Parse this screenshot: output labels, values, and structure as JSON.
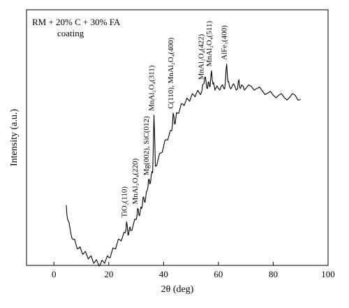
{
  "chart_data": {
    "type": "line",
    "title": "",
    "legend_box": [
      "RM + 20% C + 30% FA",
      "coating"
    ],
    "xlabel": "2θ (deg)",
    "ylabel": "Intensity (a.u.)",
    "xlim": [
      -10,
      100
    ],
    "xticks": [
      0,
      20,
      40,
      60,
      80,
      100
    ],
    "y_ticks_shown": false,
    "grid": false,
    "line_color": "#000000",
    "x": [
      4.5,
      5,
      6,
      7,
      8,
      9,
      10,
      11,
      12,
      13,
      14,
      15,
      16,
      17,
      18,
      19,
      20,
      21,
      22,
      23,
      24,
      25,
      26,
      26.5,
      27,
      27.5,
      28,
      29,
      30,
      30.5,
      31,
      31.5,
      32,
      32.5,
      33,
      33.5,
      34,
      34.5,
      35,
      35.5,
      36,
      36.5,
      37,
      38,
      39,
      40,
      41,
      42,
      43,
      43.5,
      44,
      44.5,
      45,
      46,
      47,
      48,
      49,
      50,
      51,
      52,
      53,
      54,
      54.5,
      55,
      55.5,
      56,
      56.5,
      57,
      57.5,
      58,
      58.5,
      59,
      60,
      61,
      62,
      62.5,
      63,
      63.5,
      64,
      65,
      66,
      67,
      67.5,
      68,
      69,
      70,
      72,
      74,
      76,
      78,
      80,
      82,
      84,
      86,
      88,
      90
    ],
    "y": [
      0.265,
      0.2,
      0.15,
      0.11,
      0.09,
      0.07,
      0.06,
      0.05,
      0.04,
      0.03,
      0.02,
      0.01,
      0.005,
      0.0,
      0.01,
      0.02,
      0.03,
      0.05,
      0.07,
      0.09,
      0.11,
      0.12,
      0.14,
      0.19,
      0.13,
      0.16,
      0.15,
      0.18,
      0.2,
      0.25,
      0.22,
      0.24,
      0.25,
      0.3,
      0.28,
      0.3,
      0.33,
      0.38,
      0.36,
      0.4,
      0.41,
      0.67,
      0.44,
      0.47,
      0.5,
      0.53,
      0.56,
      0.58,
      0.6,
      0.68,
      0.63,
      0.66,
      0.68,
      0.7,
      0.72,
      0.73,
      0.74,
      0.75,
      0.76,
      0.77,
      0.77,
      0.78,
      0.81,
      0.84,
      0.82,
      0.79,
      0.82,
      0.8,
      0.87,
      0.81,
      0.8,
      0.79,
      0.79,
      0.8,
      0.79,
      0.81,
      0.9,
      0.82,
      0.8,
      0.8,
      0.8,
      0.79,
      0.83,
      0.79,
      0.8,
      0.79,
      0.8,
      0.79,
      0.78,
      0.77,
      0.76,
      0.76,
      0.75,
      0.75,
      0.76,
      0.74
    ]
  },
  "peaks": [
    {
      "label": "TiO₂(110)",
      "x": 26.5
    },
    {
      "label": "MnAl₂O₄(220)",
      "x": 30.5
    },
    {
      "label": "Mg(002), SiC(012)",
      "x": 34.5
    },
    {
      "label": "MnAl₂O₄(311)",
      "x": 36.5
    },
    {
      "label": "C(110), MnAl₂O₄(400)",
      "x": 43.5
    },
    {
      "label": "MnAl₂O₄(422)",
      "x": 54.5
    },
    {
      "label": "MnAl₂O₄(511)",
      "x": 57.5
    },
    {
      "label": "AlFe₃(400)",
      "x": 63
    }
  ]
}
